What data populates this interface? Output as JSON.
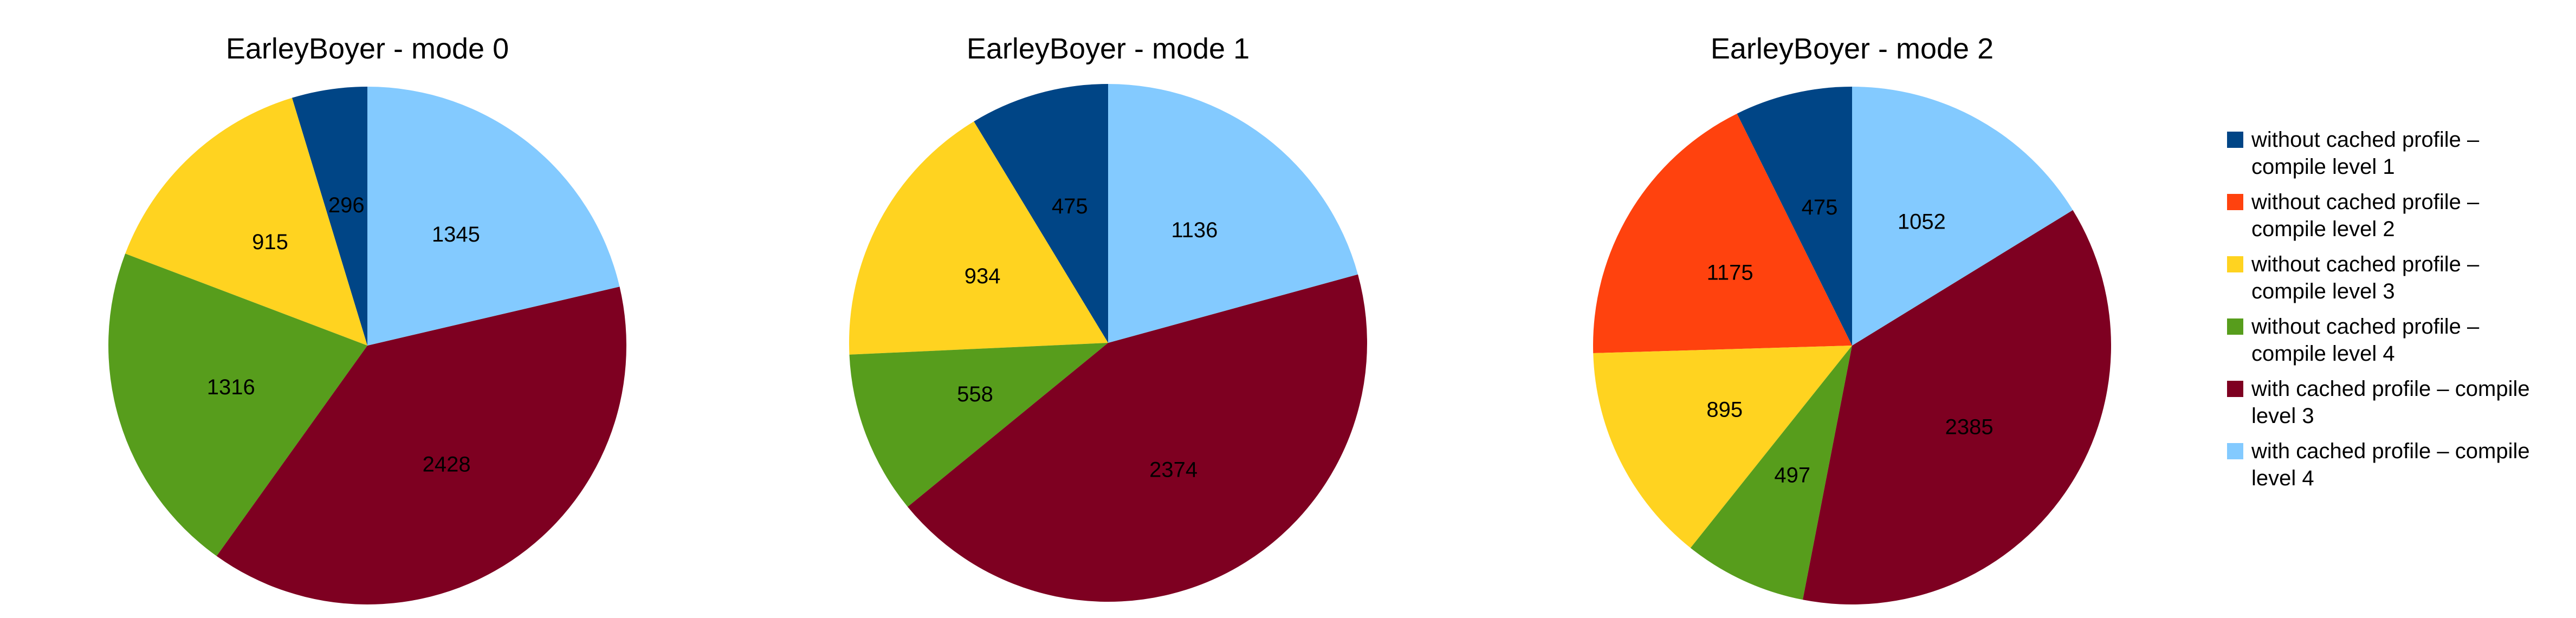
{
  "chart_data": [
    {
      "type": "pie",
      "title": "EarleyBoyer - mode 0",
      "slices": [
        {
          "series": 0,
          "value": 296
        },
        {
          "series": 1,
          "value": 0
        },
        {
          "series": 2,
          "value": 915
        },
        {
          "series": 3,
          "value": 1316
        },
        {
          "series": 4,
          "value": 2428
        },
        {
          "series": 5,
          "value": 1345
        }
      ]
    },
    {
      "type": "pie",
      "title": "EarleyBoyer - mode 1",
      "slices": [
        {
          "series": 0,
          "value": 475
        },
        {
          "series": 1,
          "value": 0
        },
        {
          "series": 2,
          "value": 934
        },
        {
          "series": 3,
          "value": 558
        },
        {
          "series": 4,
          "value": 2374
        },
        {
          "series": 5,
          "value": 1136
        }
      ]
    },
    {
      "type": "pie",
      "title": "EarleyBoyer - mode 2",
      "slices": [
        {
          "series": 0,
          "value": 475
        },
        {
          "series": 1,
          "value": 1175
        },
        {
          "series": 2,
          "value": 895
        },
        {
          "series": 3,
          "value": 497
        },
        {
          "series": 4,
          "value": 2385
        },
        {
          "series": 5,
          "value": 1052
        }
      ]
    }
  ],
  "legend": {
    "placement": "right",
    "entries": [
      {
        "lines": [
          "without cached profile –",
          "compile level 1"
        ],
        "color": "#004586"
      },
      {
        "lines": [
          "without cached profile –",
          "compile level 2"
        ],
        "color": "#ff420e"
      },
      {
        "lines": [
          "without cached profile –",
          "compile level 3"
        ],
        "color": "#ffd320"
      },
      {
        "lines": [
          "without cached profile –",
          "compile level 4"
        ],
        "color": "#579d1c"
      },
      {
        "lines": [
          "with cached profile – compile",
          "level 3"
        ],
        "color": "#7e0021"
      },
      {
        "lines": [
          "with cached profile – compile",
          "level 4"
        ],
        "color": "#83caff"
      }
    ]
  }
}
